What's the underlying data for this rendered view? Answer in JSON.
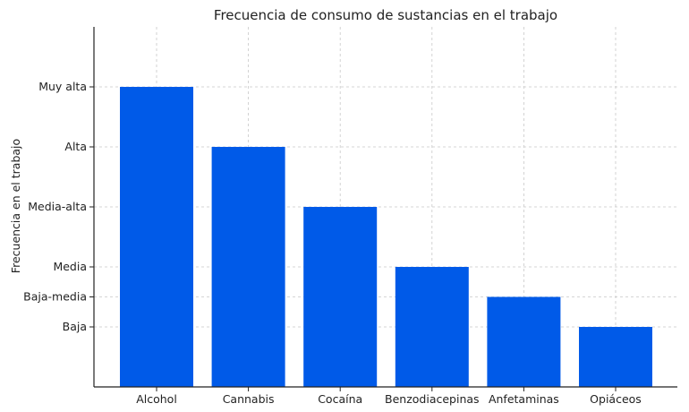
{
  "chart_data": {
    "type": "bar",
    "title": "Frecuencia de consumo de sustancias en el trabajo",
    "xlabel": "",
    "ylabel": "Frecuencia en el trabajo",
    "categories": [
      "Alcohol",
      "Cannabis",
      "Cocaína",
      "Benzodiacepinas",
      "Anfetaminas",
      "Opiáceos"
    ],
    "values": [
      6,
      5,
      4,
      3,
      2.5,
      2
    ],
    "y_ticks": [
      {
        "value": 2,
        "label": "Baja"
      },
      {
        "value": 2.5,
        "label": "Baja-media"
      },
      {
        "value": 3,
        "label": "Media"
      },
      {
        "value": 4,
        "label": "Media-alta"
      },
      {
        "value": 5,
        "label": "Alta"
      },
      {
        "value": 6,
        "label": "Muy alta"
      }
    ],
    "ylim": [
      1,
      7
    ],
    "grid": true,
    "bar_color": "#005ae8"
  }
}
